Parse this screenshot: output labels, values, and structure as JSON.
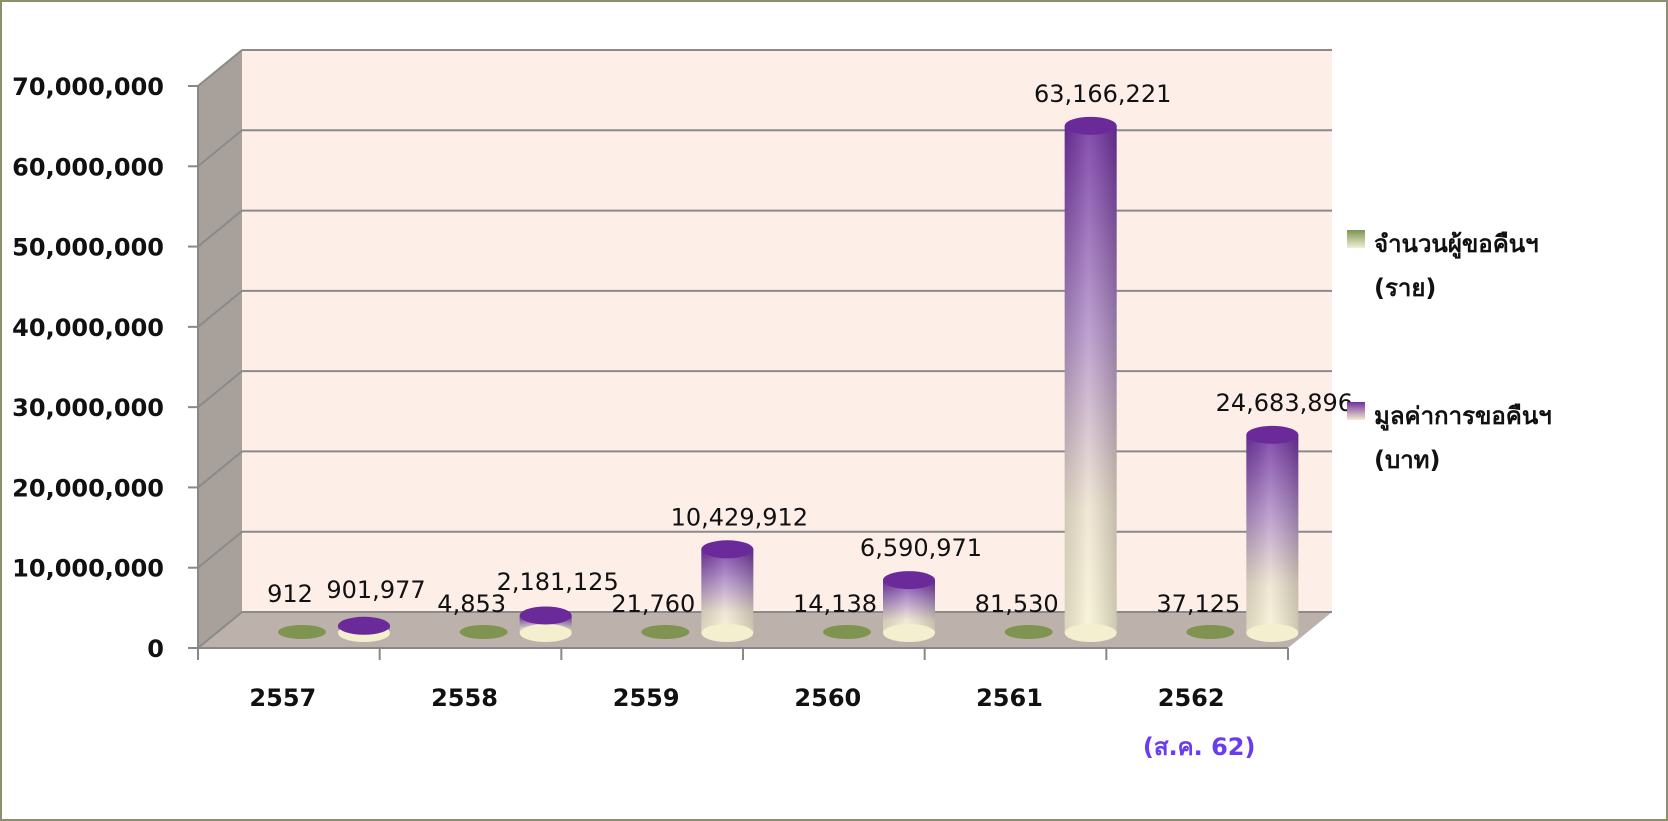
{
  "chart_data": {
    "type": "bar",
    "categories": [
      "2557",
      "2558",
      "2559",
      "2560",
      "2561",
      "2562"
    ],
    "category_note": {
      "category": "2562",
      "text": "(ส.ค. 62)"
    },
    "series": [
      {
        "name": "จำนวนผู้ขอคืนฯ (ราย)",
        "name_lines": [
          "จำนวนผู้ขอคืนฯ",
          "(ราย)"
        ],
        "values": [
          912,
          4853,
          21760,
          14138,
          81530,
          37125
        ],
        "labels": [
          "912",
          "4,853",
          "21,760",
          "14,138",
          "81,530",
          "37,125"
        ],
        "color": "#7f9450"
      },
      {
        "name": "มูลค่าการขอคืนฯ (บาท)",
        "name_lines": [
          "มูลค่าการขอคืนฯ",
          "(บาท)"
        ],
        "values": [
          901977,
          2181125,
          10429912,
          6590971,
          63166221,
          24683896
        ],
        "labels": [
          "901,977",
          "2,181,125",
          "10,429,912",
          "6,590,971",
          "63,166,221",
          "24,683,896"
        ],
        "color": "#7030a0"
      }
    ],
    "ylim": [
      0,
      70000000
    ],
    "yticks": [
      0,
      10000000,
      20000000,
      30000000,
      40000000,
      50000000,
      60000000,
      70000000
    ],
    "ytick_labels": [
      "0",
      "10,000,000",
      "20,000,000",
      "30,000,000",
      "40,000,000",
      "50,000,000",
      "60,000,000",
      "70,000,000"
    ],
    "grid": true,
    "legend_position": "right",
    "background_color": "#fdeee8",
    "title": "",
    "xlabel": "",
    "ylabel": ""
  }
}
